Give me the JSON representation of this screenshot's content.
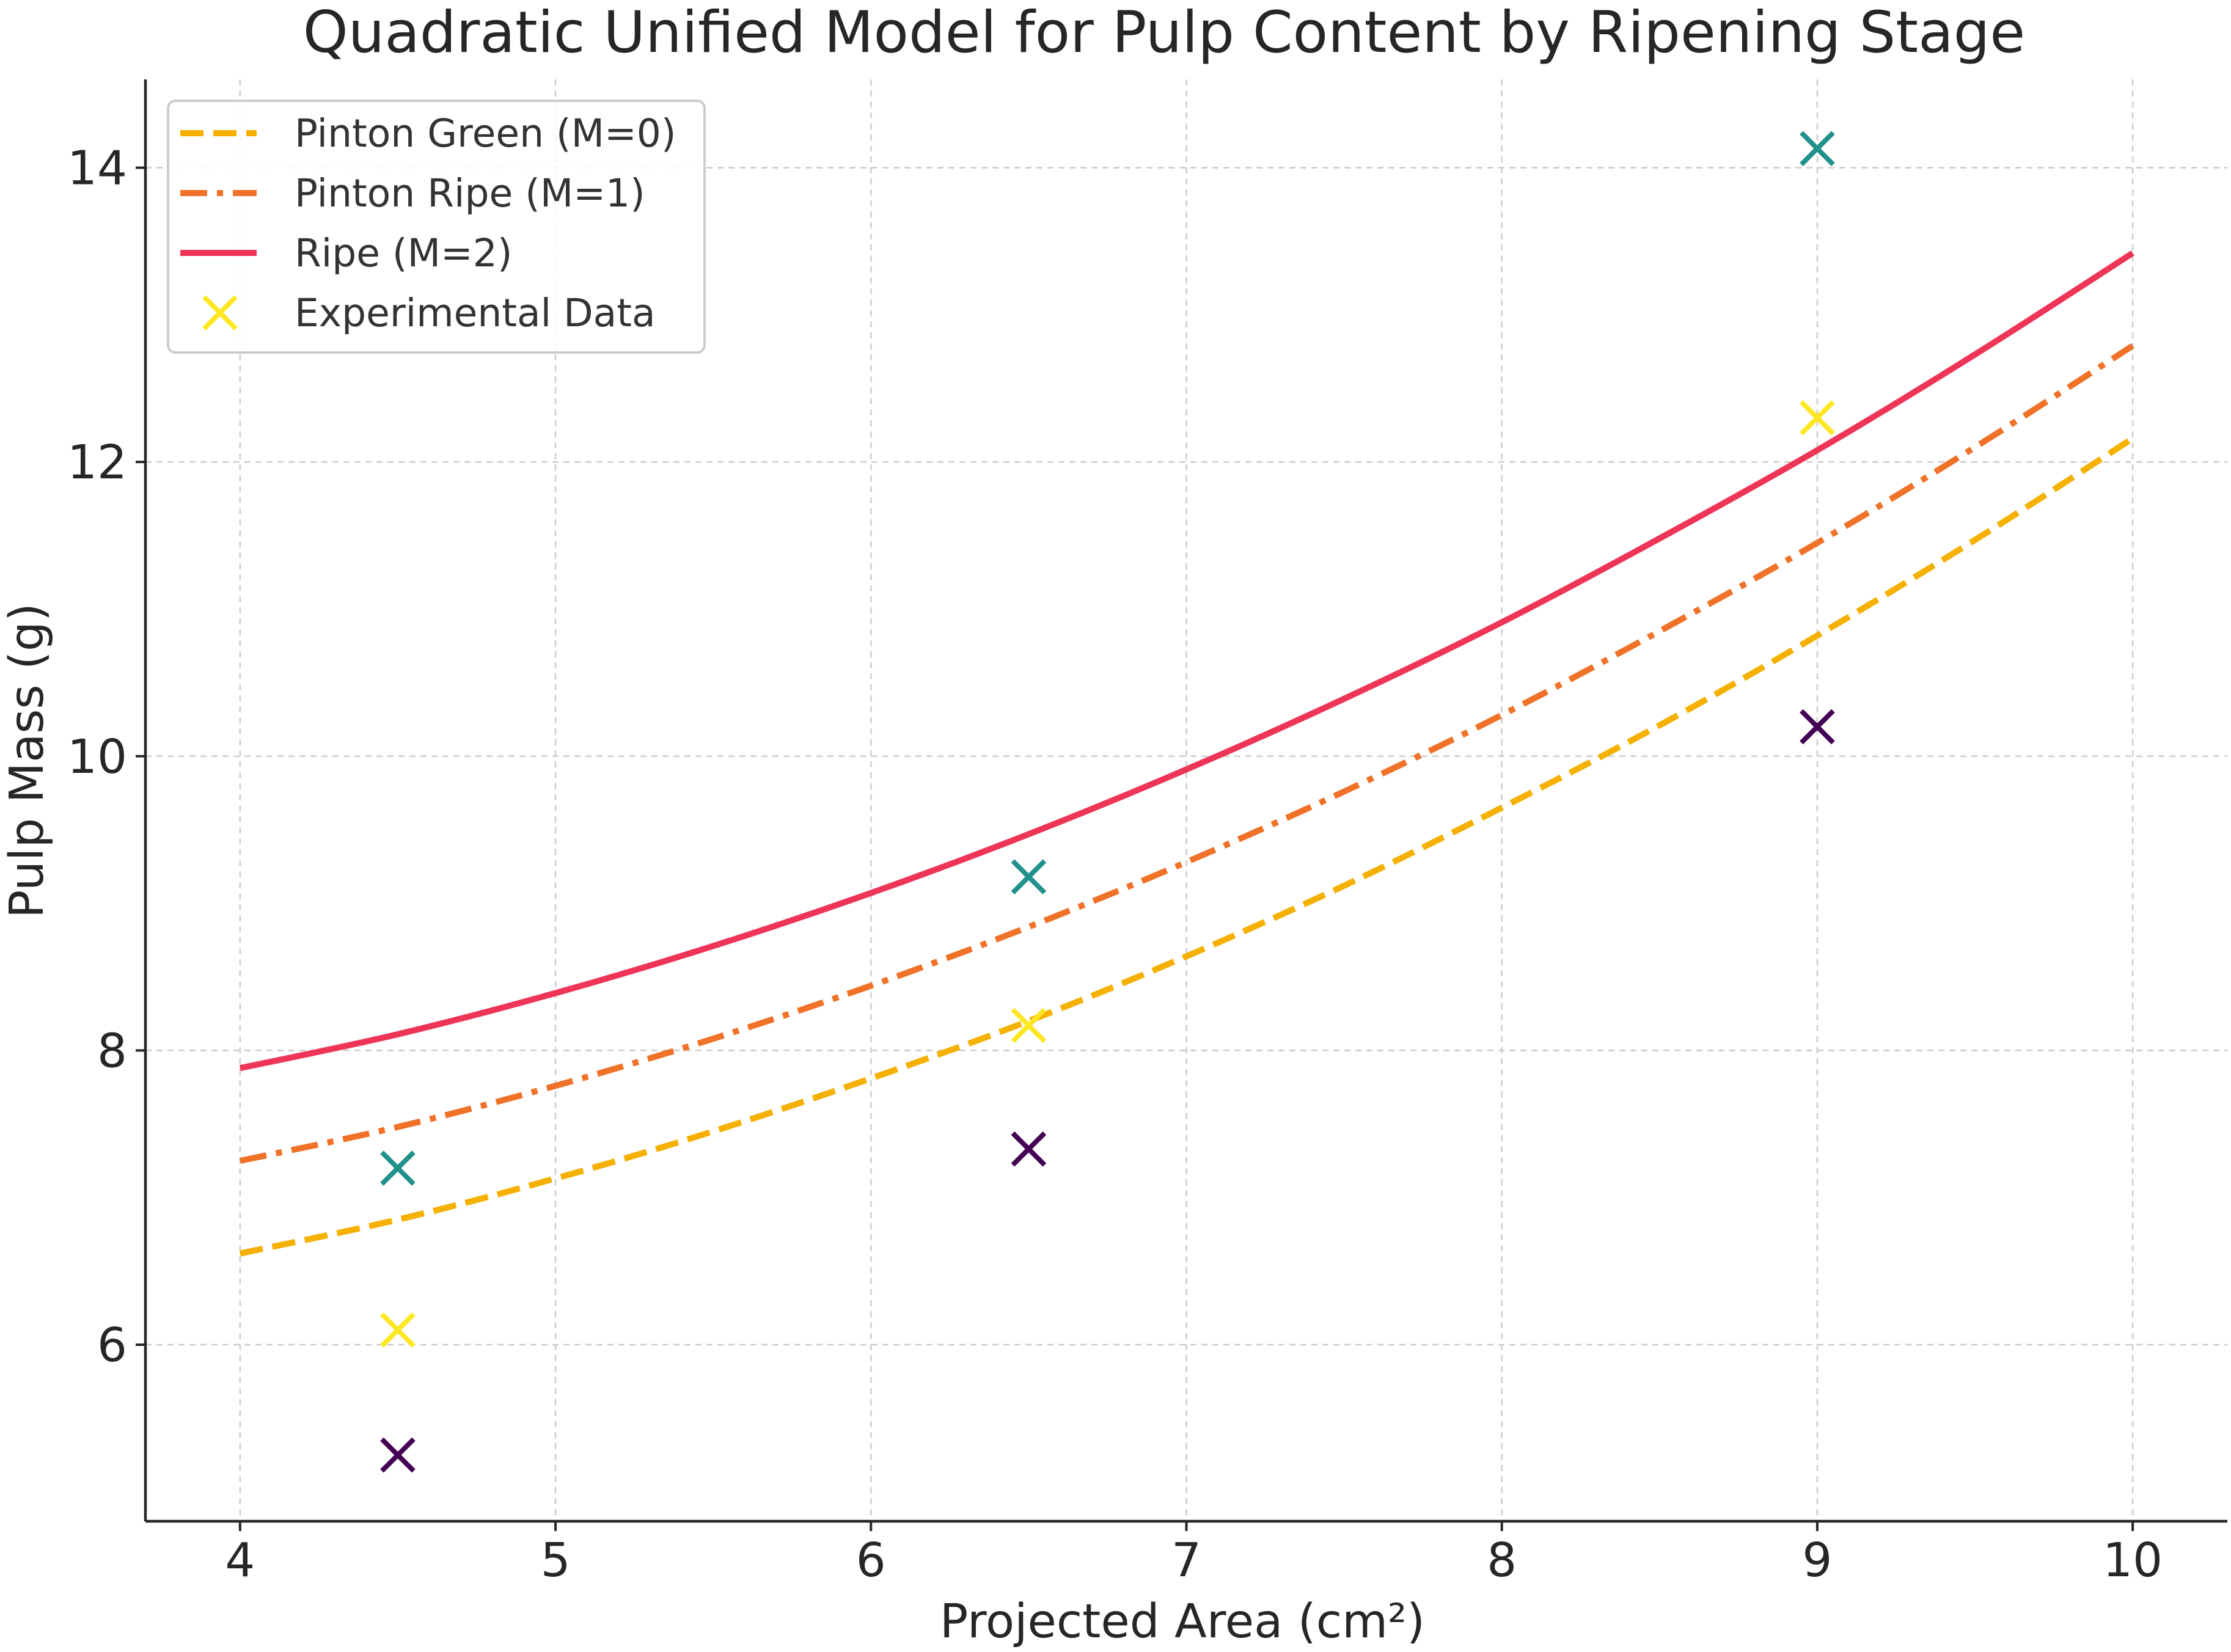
{
  "chart_data": {
    "type": "line",
    "title": "Quadratic Unified Model for Pulp Content by Ripening Stage",
    "xlabel": "Projected Area (cm²)",
    "ylabel": "Pulp Mass (g)",
    "xlim": [
      3.7,
      10.3
    ],
    "ylim": [
      4.8,
      14.6
    ],
    "x_ticks": [
      4,
      5,
      6,
      7,
      8,
      9,
      10
    ],
    "y_ticks": [
      6,
      8,
      10,
      12,
      14
    ],
    "grid": true,
    "legend_position": "top-left",
    "series": [
      {
        "name": "Pinton Green (M=0)",
        "style": "dashed",
        "color": "#f5b000",
        "x": [
          4.0,
          4.5,
          5.0,
          5.5,
          6.0,
          6.5,
          7.0,
          7.5,
          8.0,
          8.5,
          9.0,
          9.5,
          10.0
        ],
        "y": [
          6.62,
          6.85,
          7.13,
          7.45,
          7.81,
          8.2,
          8.64,
          9.12,
          9.65,
          10.21,
          10.82,
          11.47,
          12.16
        ]
      },
      {
        "name": "Pinton Ripe (M=1)",
        "style": "dashdot",
        "color": "#f07228",
        "x": [
          4.0,
          4.5,
          5.0,
          5.5,
          6.0,
          6.5,
          7.0,
          7.5,
          8.0,
          8.5,
          9.0,
          9.5,
          10.0
        ],
        "y": [
          7.25,
          7.48,
          7.76,
          8.08,
          8.44,
          8.84,
          9.28,
          9.76,
          10.28,
          10.85,
          11.45,
          12.1,
          12.79
        ]
      },
      {
        "name": "Ripe (M=2)",
        "style": "solid",
        "color": "#ee3558",
        "x": [
          4.0,
          4.5,
          5.0,
          5.5,
          6.0,
          6.5,
          7.0,
          7.5,
          8.0,
          8.5,
          9.0,
          9.5,
          10.0
        ],
        "y": [
          7.88,
          8.11,
          8.39,
          8.71,
          9.07,
          9.47,
          9.91,
          10.39,
          10.91,
          11.48,
          12.08,
          12.73,
          13.42
        ]
      }
    ],
    "scatter": {
      "name": "Experimental Data",
      "marker": "x",
      "legend_color": "#fde725",
      "points": [
        {
          "x": 4.5,
          "y": 5.25,
          "color": "#440154"
        },
        {
          "x": 4.5,
          "y": 6.1,
          "color": "#fde725"
        },
        {
          "x": 4.5,
          "y": 7.2,
          "color": "#21918c"
        },
        {
          "x": 6.5,
          "y": 7.33,
          "color": "#440154"
        },
        {
          "x": 6.5,
          "y": 8.17,
          "color": "#fde725"
        },
        {
          "x": 6.5,
          "y": 9.18,
          "color": "#21918c"
        },
        {
          "x": 9.0,
          "y": 10.2,
          "color": "#440154"
        },
        {
          "x": 9.0,
          "y": 12.3,
          "color": "#fde725"
        },
        {
          "x": 9.0,
          "y": 14.13,
          "color": "#21918c"
        }
      ]
    }
  }
}
